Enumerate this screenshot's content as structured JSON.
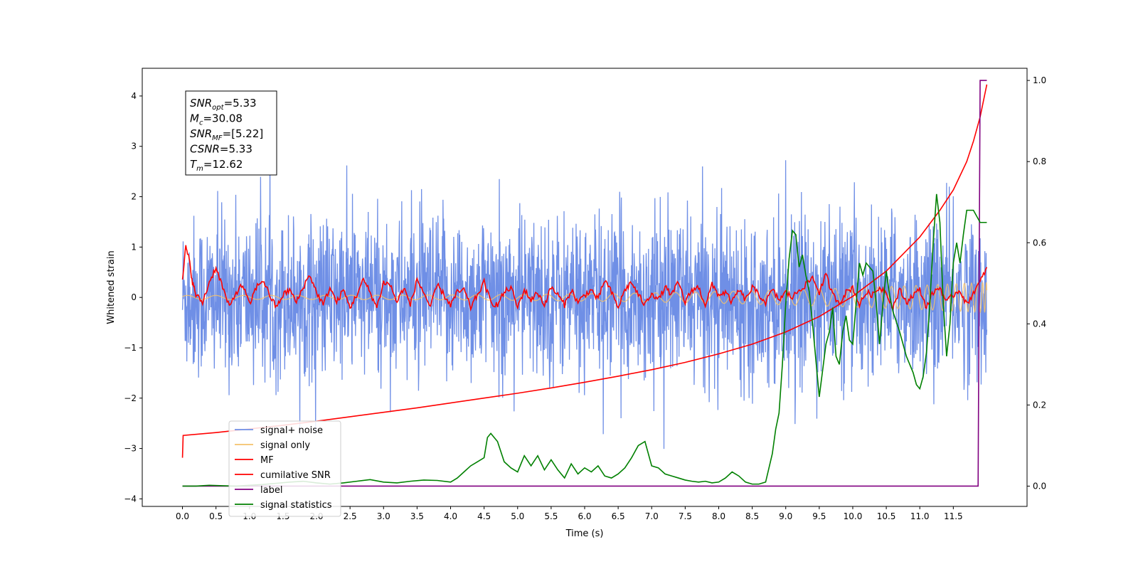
{
  "chart_data": {
    "type": "line",
    "xlabel": "Time (s)",
    "ylabel": "Whitened strain",
    "xlim": [
      -0.6,
      12.6
    ],
    "ylim": [
      -4.15,
      4.55
    ],
    "ylim_right": [
      -0.05,
      1.03
    ],
    "x_ticks": [
      0.0,
      0.5,
      1.0,
      1.5,
      2.0,
      2.5,
      3.0,
      3.5,
      4.0,
      4.5,
      5.0,
      5.5,
      6.0,
      6.5,
      7.0,
      7.5,
      8.0,
      8.5,
      9.0,
      9.5,
      10.0,
      10.5,
      11.0,
      11.5
    ],
    "x_tick_labels": [
      "0.0",
      "0.5",
      "1.0",
      "1.5",
      "2.0",
      "2.5",
      "3.0",
      "3.5",
      "4.0",
      "4.5",
      "5.0",
      "5.5",
      "6.0",
      "6.5",
      "7.0",
      "7.5",
      "8.0",
      "8.5",
      "9.0",
      "9.5",
      "10.0",
      "10.5",
      "11.0",
      "11.5"
    ],
    "y_ticks": [
      -4,
      -3,
      -2,
      -1,
      0,
      1,
      2,
      3,
      4
    ],
    "y_tick_labels": [
      "−4",
      "−3",
      "−2",
      "−1",
      "0",
      "1",
      "2",
      "3",
      "4"
    ],
    "y_right_ticks": [
      0.0,
      0.2,
      0.4,
      0.6,
      0.8,
      1.0
    ],
    "y_right_tick_labels": [
      "0.0",
      "0.2",
      "0.4",
      "0.6",
      "0.8",
      "1.0"
    ],
    "legend_position": "lower-left",
    "colors": {
      "signal_noise": "#6f8fe6",
      "signal_only": "#f5c26b",
      "mf": "#ff0000",
      "csnr": "#ff0000",
      "label": "#800080",
      "stats": "#008000"
    },
    "info_box": {
      "lines": [
        {
          "sym": "SNR",
          "sub": "opt",
          "value": "=5.33"
        },
        {
          "sym": "M",
          "sub": "c",
          "value": "=30.08"
        },
        {
          "sym": "SNR",
          "sub": "MF",
          "value": "=[5.22]"
        },
        {
          "sym": "CSNR",
          "sub": "",
          "value": "=5.33"
        },
        {
          "sym": "T",
          "sub": "m",
          "value": "=12.62"
        }
      ]
    },
    "series": [
      {
        "name": "signal+ noise",
        "axis": "left",
        "generated": "noise",
        "x_range": [
          0.0,
          12.0
        ],
        "std": 0.8
      },
      {
        "name": "signal only",
        "axis": "left",
        "generated": "chirp",
        "x_range": [
          0.0,
          12.0
        ],
        "amplitude_start": 0.04,
        "amplitude_end": 0.3
      },
      {
        "name": "MF",
        "axis": "left",
        "x": [
          0.0,
          0.05,
          0.1,
          0.15,
          0.2,
          0.3,
          0.4,
          0.5,
          0.6,
          0.7,
          0.8,
          0.9,
          1.0,
          1.1,
          1.2,
          1.3,
          1.4,
          1.5,
          1.6,
          1.7,
          1.8,
          1.9,
          2.0,
          2.1,
          2.2,
          2.3,
          2.4,
          2.5,
          2.6,
          2.7,
          2.8,
          2.9,
          3.0,
          3.1,
          3.2,
          3.3,
          3.4,
          3.5,
          3.6,
          3.7,
          3.8,
          3.9,
          4.0,
          4.1,
          4.2,
          4.3,
          4.4,
          4.5,
          4.6,
          4.7,
          4.8,
          4.9,
          5.0,
          5.1,
          5.2,
          5.3,
          5.4,
          5.5,
          5.6,
          5.7,
          5.8,
          5.9,
          6.0,
          6.1,
          6.2,
          6.3,
          6.4,
          6.5,
          6.6,
          6.7,
          6.8,
          6.9,
          7.0,
          7.1,
          7.2,
          7.3,
          7.4,
          7.5,
          7.6,
          7.7,
          7.8,
          7.9,
          8.0,
          8.1,
          8.2,
          8.3,
          8.4,
          8.5,
          8.6,
          8.7,
          8.8,
          8.9,
          9.0,
          9.1,
          9.2,
          9.3,
          9.4,
          9.5,
          9.6,
          9.7,
          9.8,
          9.9,
          10.0,
          10.1,
          10.2,
          10.3,
          10.4,
          10.5,
          10.6,
          10.7,
          10.8,
          10.9,
          11.0,
          11.1,
          11.2,
          11.3,
          11.4,
          11.5,
          11.6,
          11.7,
          11.8,
          11.9,
          12.0
        ],
        "values": [
          0.4,
          1.0,
          0.75,
          0.3,
          0.05,
          -0.1,
          0.3,
          0.6,
          0.2,
          -0.2,
          0.1,
          0.25,
          -0.15,
          0.2,
          0.35,
          0.05,
          -0.2,
          0.05,
          0.15,
          -0.1,
          0.2,
          0.45,
          0.1,
          -0.15,
          0.2,
          -0.1,
          0.15,
          -0.2,
          0.05,
          0.35,
          0.1,
          -0.2,
          0.3,
          0.25,
          -0.1,
          0.2,
          -0.15,
          0.35,
          0.1,
          -0.2,
          0.25,
          0.05,
          -0.15,
          0.1,
          0.15,
          -0.2,
          0.05,
          0.3,
          -0.1,
          -0.15,
          0.1,
          0.2,
          -0.2,
          0.15,
          -0.05,
          0.1,
          -0.15,
          0.2,
          0.05,
          -0.15,
          0.15,
          -0.1,
          0.05,
          0.15,
          -0.05,
          0.35,
          0.1,
          -0.2,
          0.15,
          0.3,
          0.05,
          -0.15,
          0.1,
          -0.05,
          0.2,
          0.05,
          0.3,
          -0.1,
          0.15,
          0.2,
          -0.15,
          0.25,
          0.05,
          0.1,
          -0.1,
          0.15,
          -0.05,
          0.2,
          0.05,
          -0.1,
          0.15,
          -0.05,
          0.1,
          0.0,
          0.15,
          0.25,
          0.4,
          0.1,
          0.45,
          0.05,
          -0.1,
          0.1,
          0.2,
          -0.15,
          0.1,
          0.05,
          0.2,
          0.1,
          -0.2,
          0.15,
          -0.1,
          0.05,
          0.15,
          -0.2,
          0.1,
          0.2,
          -0.1,
          0.05,
          0.15,
          -0.15,
          0.1,
          0.3,
          0.6
        ]
      },
      {
        "name": "cumilative SNR",
        "axis": "right",
        "x": [
          0.0,
          0.01,
          0.5,
          1.0,
          1.5,
          2.0,
          2.5,
          3.0,
          3.5,
          4.0,
          4.5,
          5.0,
          5.5,
          6.0,
          6.5,
          7.0,
          7.5,
          8.0,
          8.5,
          9.0,
          9.5,
          10.0,
          10.5,
          11.0,
          11.3,
          11.5,
          11.7,
          11.8,
          11.9,
          11.95,
          12.0
        ],
        "values": [
          0.07,
          0.125,
          0.132,
          0.141,
          0.15,
          0.16,
          0.171,
          0.182,
          0.193,
          0.205,
          0.217,
          0.229,
          0.242,
          0.256,
          0.271,
          0.287,
          0.305,
          0.326,
          0.35,
          0.38,
          0.418,
          0.468,
          0.53,
          0.614,
          0.68,
          0.73,
          0.8,
          0.85,
          0.91,
          0.95,
          0.99
        ]
      },
      {
        "name": "label",
        "axis": "right",
        "x": [
          0.0,
          11.87,
          11.9,
          11.94,
          12.0
        ],
        "values": [
          0.0,
          0.0,
          1.0,
          1.0,
          1.0
        ]
      },
      {
        "name": "signal statistics",
        "axis": "right",
        "x": [
          0.0,
          0.2,
          0.4,
          0.6,
          0.8,
          1.0,
          1.2,
          1.4,
          1.6,
          1.8,
          2.0,
          2.2,
          2.4,
          2.6,
          2.8,
          3.0,
          3.2,
          3.4,
          3.6,
          3.8,
          4.0,
          4.1,
          4.2,
          4.3,
          4.4,
          4.5,
          4.55,
          4.6,
          4.7,
          4.8,
          4.9,
          5.0,
          5.1,
          5.2,
          5.3,
          5.4,
          5.5,
          5.6,
          5.7,
          5.8,
          5.9,
          6.0,
          6.1,
          6.2,
          6.3,
          6.4,
          6.5,
          6.6,
          6.7,
          6.8,
          6.9,
          7.0,
          7.1,
          7.2,
          7.3,
          7.4,
          7.5,
          7.6,
          7.7,
          7.8,
          7.9,
          8.0,
          8.1,
          8.2,
          8.3,
          8.4,
          8.5,
          8.6,
          8.7,
          8.8,
          8.85,
          8.9,
          8.95,
          9.0,
          9.05,
          9.1,
          9.15,
          9.2,
          9.25,
          9.3,
          9.35,
          9.4,
          9.5,
          9.6,
          9.65,
          9.7,
          9.75,
          9.8,
          9.85,
          9.9,
          9.95,
          10.0,
          10.05,
          10.1,
          10.15,
          10.2,
          10.3,
          10.35,
          10.4,
          10.45,
          10.5,
          10.55,
          10.6,
          10.7,
          10.8,
          10.9,
          10.95,
          11.0,
          11.05,
          11.1,
          11.15,
          11.2,
          11.25,
          11.3,
          11.35,
          11.4,
          11.45,
          11.5,
          11.55,
          11.6,
          11.65,
          11.7,
          11.8,
          11.9,
          12.0
        ],
        "values": [
          0.0,
          0.0,
          0.002,
          0.001,
          0.0,
          0.002,
          0.004,
          0.007,
          0.01,
          0.012,
          0.008,
          0.005,
          0.008,
          0.012,
          0.016,
          0.01,
          0.008,
          0.012,
          0.015,
          0.014,
          0.01,
          0.02,
          0.035,
          0.05,
          0.06,
          0.07,
          0.12,
          0.13,
          0.11,
          0.06,
          0.045,
          0.035,
          0.075,
          0.05,
          0.075,
          0.04,
          0.065,
          0.04,
          0.02,
          0.055,
          0.03,
          0.045,
          0.035,
          0.05,
          0.025,
          0.02,
          0.03,
          0.045,
          0.07,
          0.1,
          0.11,
          0.05,
          0.045,
          0.03,
          0.025,
          0.02,
          0.015,
          0.012,
          0.01,
          0.012,
          0.008,
          0.01,
          0.02,
          0.035,
          0.025,
          0.01,
          0.005,
          0.005,
          0.01,
          0.08,
          0.14,
          0.18,
          0.3,
          0.45,
          0.56,
          0.63,
          0.62,
          0.54,
          0.57,
          0.52,
          0.48,
          0.4,
          0.22,
          0.35,
          0.38,
          0.44,
          0.32,
          0.3,
          0.38,
          0.42,
          0.36,
          0.35,
          0.45,
          0.55,
          0.52,
          0.55,
          0.53,
          0.45,
          0.35,
          0.45,
          0.53,
          0.47,
          0.43,
          0.38,
          0.32,
          0.28,
          0.25,
          0.24,
          0.27,
          0.33,
          0.45,
          0.6,
          0.72,
          0.65,
          0.45,
          0.32,
          0.4,
          0.55,
          0.6,
          0.55,
          0.62,
          0.68,
          0.68,
          0.65,
          0.65
        ]
      }
    ]
  }
}
